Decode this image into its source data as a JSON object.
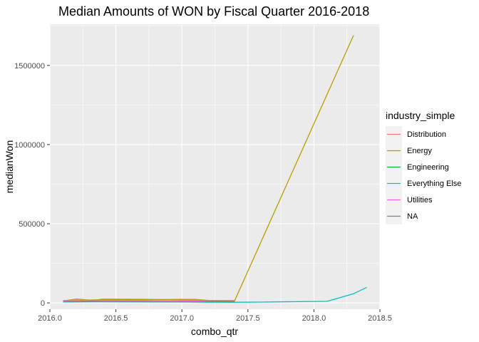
{
  "chart_data": {
    "type": "line",
    "title": "Median Amounts of WON by Fiscal Quarter 2016-2018",
    "xlabel": "combo_qtr",
    "ylabel": "medianWon",
    "xlim": [
      2016.0,
      2018.5
    ],
    "ylim": [
      -40000,
      1760000
    ],
    "x_ticks": [
      2016.0,
      2016.5,
      2017.0,
      2017.5,
      2018.0,
      2018.5
    ],
    "x_tick_labels": [
      "2016.0",
      "2016.5",
      "2017.0",
      "2017.5",
      "2018.0",
      "2018.5"
    ],
    "y_ticks": [
      0,
      500000,
      1000000,
      1500000
    ],
    "y_tick_labels": [
      "0",
      "500000",
      "1000000",
      "1500000"
    ],
    "grid": true,
    "legend_title": "industry_simple",
    "legend_position": "right",
    "series": [
      {
        "name": "Distribution",
        "color": "#F8766D",
        "x": [
          2016.1,
          2016.2,
          2016.3,
          2016.4,
          2016.7,
          2017.0,
          2017.1,
          2017.2,
          2017.3,
          2017.4
        ],
        "y": [
          15000,
          14000,
          12000,
          24000,
          23000,
          19000,
          16000,
          14000,
          13000,
          12000
        ]
      },
      {
        "name": "Energy",
        "color": "#B79F00",
        "x": [
          2016.1,
          2016.2,
          2016.3,
          2016.4,
          2016.7,
          2017.0,
          2017.1,
          2017.2,
          2017.3,
          2017.4,
          2018.3
        ],
        "y": [
          12000,
          25000,
          18000,
          20000,
          20000,
          22000,
          22000,
          16000,
          15000,
          15000,
          1690000
        ]
      },
      {
        "name": "Engineering",
        "color": "#00BA38",
        "x": [
          2016.1,
          2016.2,
          2016.3,
          2016.4,
          2016.7,
          2017.0,
          2017.1,
          2017.2,
          2017.3,
          2017.4
        ],
        "y": [
          8000,
          7000,
          9000,
          8000,
          7000,
          6000,
          6000,
          5000,
          6000,
          5000
        ]
      },
      {
        "name": "Everything Else",
        "color": "#00BFC4",
        "x": [
          2016.1,
          2016.4,
          2017.0,
          2017.4,
          2017.6,
          2018.1,
          2018.3,
          2018.4
        ],
        "y": [
          6000,
          7000,
          6000,
          4000,
          5000,
          10000,
          58000,
          98000
        ]
      },
      {
        "name": "Utilities",
        "color": "#F564E3",
        "x": [
          2016.1,
          2016.2,
          2016.3,
          2016.4,
          2016.7,
          2017.0,
          2017.1,
          2017.2,
          2017.3,
          2017.4
        ],
        "y": [
          10000,
          18000,
          14000,
          16000,
          15000,
          13000,
          12000,
          10000,
          9000,
          8000
        ]
      },
      {
        "name": "NA",
        "color": "#808080",
        "x": [
          2016.1,
          2016.2,
          2016.3,
          2016.4,
          2016.7,
          2017.0,
          2017.1,
          2017.2,
          2017.3,
          2017.4
        ],
        "y": [
          9000,
          8000,
          10000,
          9000,
          8000,
          7000,
          5000,
          9000,
          8000,
          7000
        ]
      }
    ]
  }
}
